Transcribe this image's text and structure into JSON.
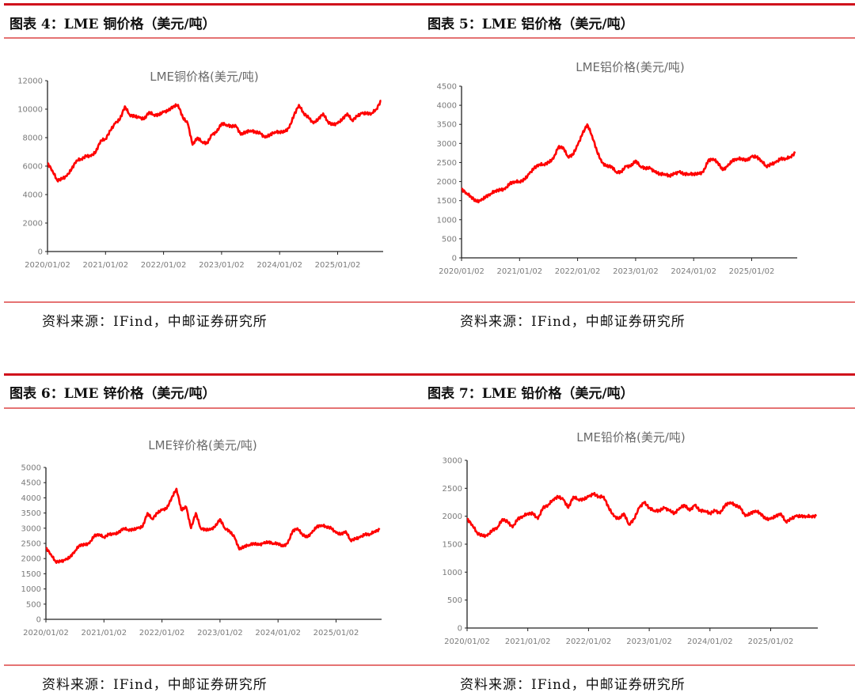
{
  "source_label": "资料来源：IFind，中邮证券研究所",
  "line_color": "#ff0000",
  "chart_data": [
    {
      "type": "line",
      "figure_label": "图表 4：LME 铜价格（美元/吨）",
      "title": "LME铜价格(美元/吨)",
      "ylim": [
        0,
        12000
      ],
      "yticks": [
        "0",
        "2000",
        "4000",
        "6000",
        "8000",
        "10000",
        "12000"
      ],
      "xticks": [
        "2020/01/02",
        "2021/01/02",
        "2022/01/02",
        "2023/01/02",
        "2024/01/02",
        "2025/01/02"
      ],
      "x_start": "2020-01",
      "x_frequency": "monthly",
      "grid": false,
      "values": [
        6200,
        5700,
        5000,
        5100,
        5300,
        5800,
        6400,
        6500,
        6700,
        6700,
        7000,
        7800,
        7900,
        8500,
        9000,
        9300,
        10200,
        9600,
        9500,
        9400,
        9300,
        9800,
        9600,
        9600,
        9800,
        9900,
        10200,
        10300,
        9400,
        9000,
        7500,
        8000,
        7700,
        7600,
        8200,
        8400,
        9000,
        8900,
        8800,
        8800,
        8200,
        8400,
        8500,
        8400,
        8300,
        8000,
        8200,
        8400,
        8400,
        8400,
        8700,
        9600,
        10300,
        9700,
        9400,
        9000,
        9300,
        9700,
        9100,
        8900,
        9000,
        9300,
        9700,
        9200,
        9500,
        9700,
        9700,
        9700,
        10000,
        10600
      ]
    },
    {
      "type": "line",
      "figure_label": "图表 5：LME 铝价格（美元/吨）",
      "title": "LME铝价格(美元/吨)",
      "ylim": [
        0,
        4500
      ],
      "yticks": [
        "0",
        "500",
        "1000",
        "1500",
        "2000",
        "2500",
        "3000",
        "3500",
        "4000",
        "4500"
      ],
      "xticks": [
        "2020/01/02",
        "2021/01/02",
        "2022/01/02",
        "2023/01/02",
        "2024/01/02",
        "2025/01/02"
      ],
      "x_start": "2020-01",
      "x_frequency": "monthly",
      "grid": false,
      "values": [
        1800,
        1700,
        1600,
        1480,
        1500,
        1600,
        1680,
        1760,
        1780,
        1800,
        1950,
        2000,
        2000,
        2050,
        2200,
        2350,
        2450,
        2450,
        2500,
        2600,
        2900,
        2900,
        2650,
        2700,
        2950,
        3250,
        3500,
        3200,
        2800,
        2500,
        2400,
        2400,
        2250,
        2250,
        2400,
        2400,
        2550,
        2400,
        2350,
        2350,
        2250,
        2200,
        2200,
        2150,
        2200,
        2250,
        2200,
        2200,
        2200,
        2200,
        2250,
        2550,
        2600,
        2500,
        2300,
        2400,
        2550,
        2600,
        2600,
        2550,
        2650,
        2650,
        2550,
        2400,
        2450,
        2500,
        2600,
        2600,
        2650,
        2750
      ]
    },
    {
      "type": "line",
      "figure_label": "图表 6：LME 锌价格（美元/吨）",
      "title": "LME锌价格(美元/吨)",
      "ylim": [
        0,
        5000
      ],
      "yticks": [
        "0",
        "500",
        "1000",
        "1500",
        "2000",
        "2500",
        "3000",
        "3500",
        "4000",
        "4500",
        "5000"
      ],
      "xticks": [
        "2020/01/02",
        "2021/01/02",
        "2022/01/02",
        "2023/01/02",
        "2024/01/02",
        "2025/01/02"
      ],
      "x_start": "2020-01",
      "x_frequency": "monthly",
      "grid": false,
      "values": [
        2350,
        2150,
        1900,
        1900,
        1950,
        2050,
        2250,
        2450,
        2450,
        2500,
        2750,
        2800,
        2700,
        2800,
        2800,
        2850,
        3000,
        2950,
        2950,
        3000,
        3050,
        3500,
        3300,
        3500,
        3600,
        3650,
        4000,
        4300,
        3600,
        3700,
        3000,
        3500,
        3000,
        2950,
        2950,
        3050,
        3300,
        3000,
        2900,
        2700,
        2300,
        2400,
        2450,
        2500,
        2450,
        2500,
        2550,
        2500,
        2500,
        2400,
        2500,
        2900,
        3000,
        2800,
        2700,
        2850,
        3050,
        3100,
        3050,
        3000,
        2850,
        2800,
        2900,
        2600,
        2650,
        2700,
        2800,
        2800,
        2900,
        2950
      ]
    },
    {
      "type": "line",
      "figure_label": "图表 7：LME 铅价格（美元/吨）",
      "title": "LME铅价格(美元/吨)",
      "ylim": [
        0,
        3000
      ],
      "yticks": [
        "0",
        "500",
        "1000",
        "1500",
        "2000",
        "2500",
        "3000"
      ],
      "xticks": [
        "2020/01/02",
        "2021/01/02",
        "2022/01/02",
        "2023/01/02",
        "2024/01/02",
        "2025/01/02"
      ],
      "x_start": "2020-01",
      "x_frequency": "monthly",
      "grid": false,
      "values": [
        1950,
        1850,
        1700,
        1650,
        1650,
        1750,
        1800,
        1950,
        1900,
        1800,
        1950,
        2000,
        2050,
        2050,
        1950,
        2150,
        2200,
        2300,
        2350,
        2300,
        2150,
        2350,
        2300,
        2300,
        2350,
        2400,
        2350,
        2350,
        2150,
        2000,
        1950,
        2050,
        1850,
        1950,
        2150,
        2250,
        2150,
        2100,
        2100,
        2150,
        2100,
        2050,
        2150,
        2200,
        2100,
        2200,
        2100,
        2100,
        2050,
        2100,
        2050,
        2200,
        2250,
        2200,
        2150,
        2000,
        2050,
        2100,
        2050,
        1950,
        1950,
        2000,
        2050,
        1900,
        1950,
        2000,
        2000,
        2000,
        2000,
        2000
      ]
    }
  ]
}
